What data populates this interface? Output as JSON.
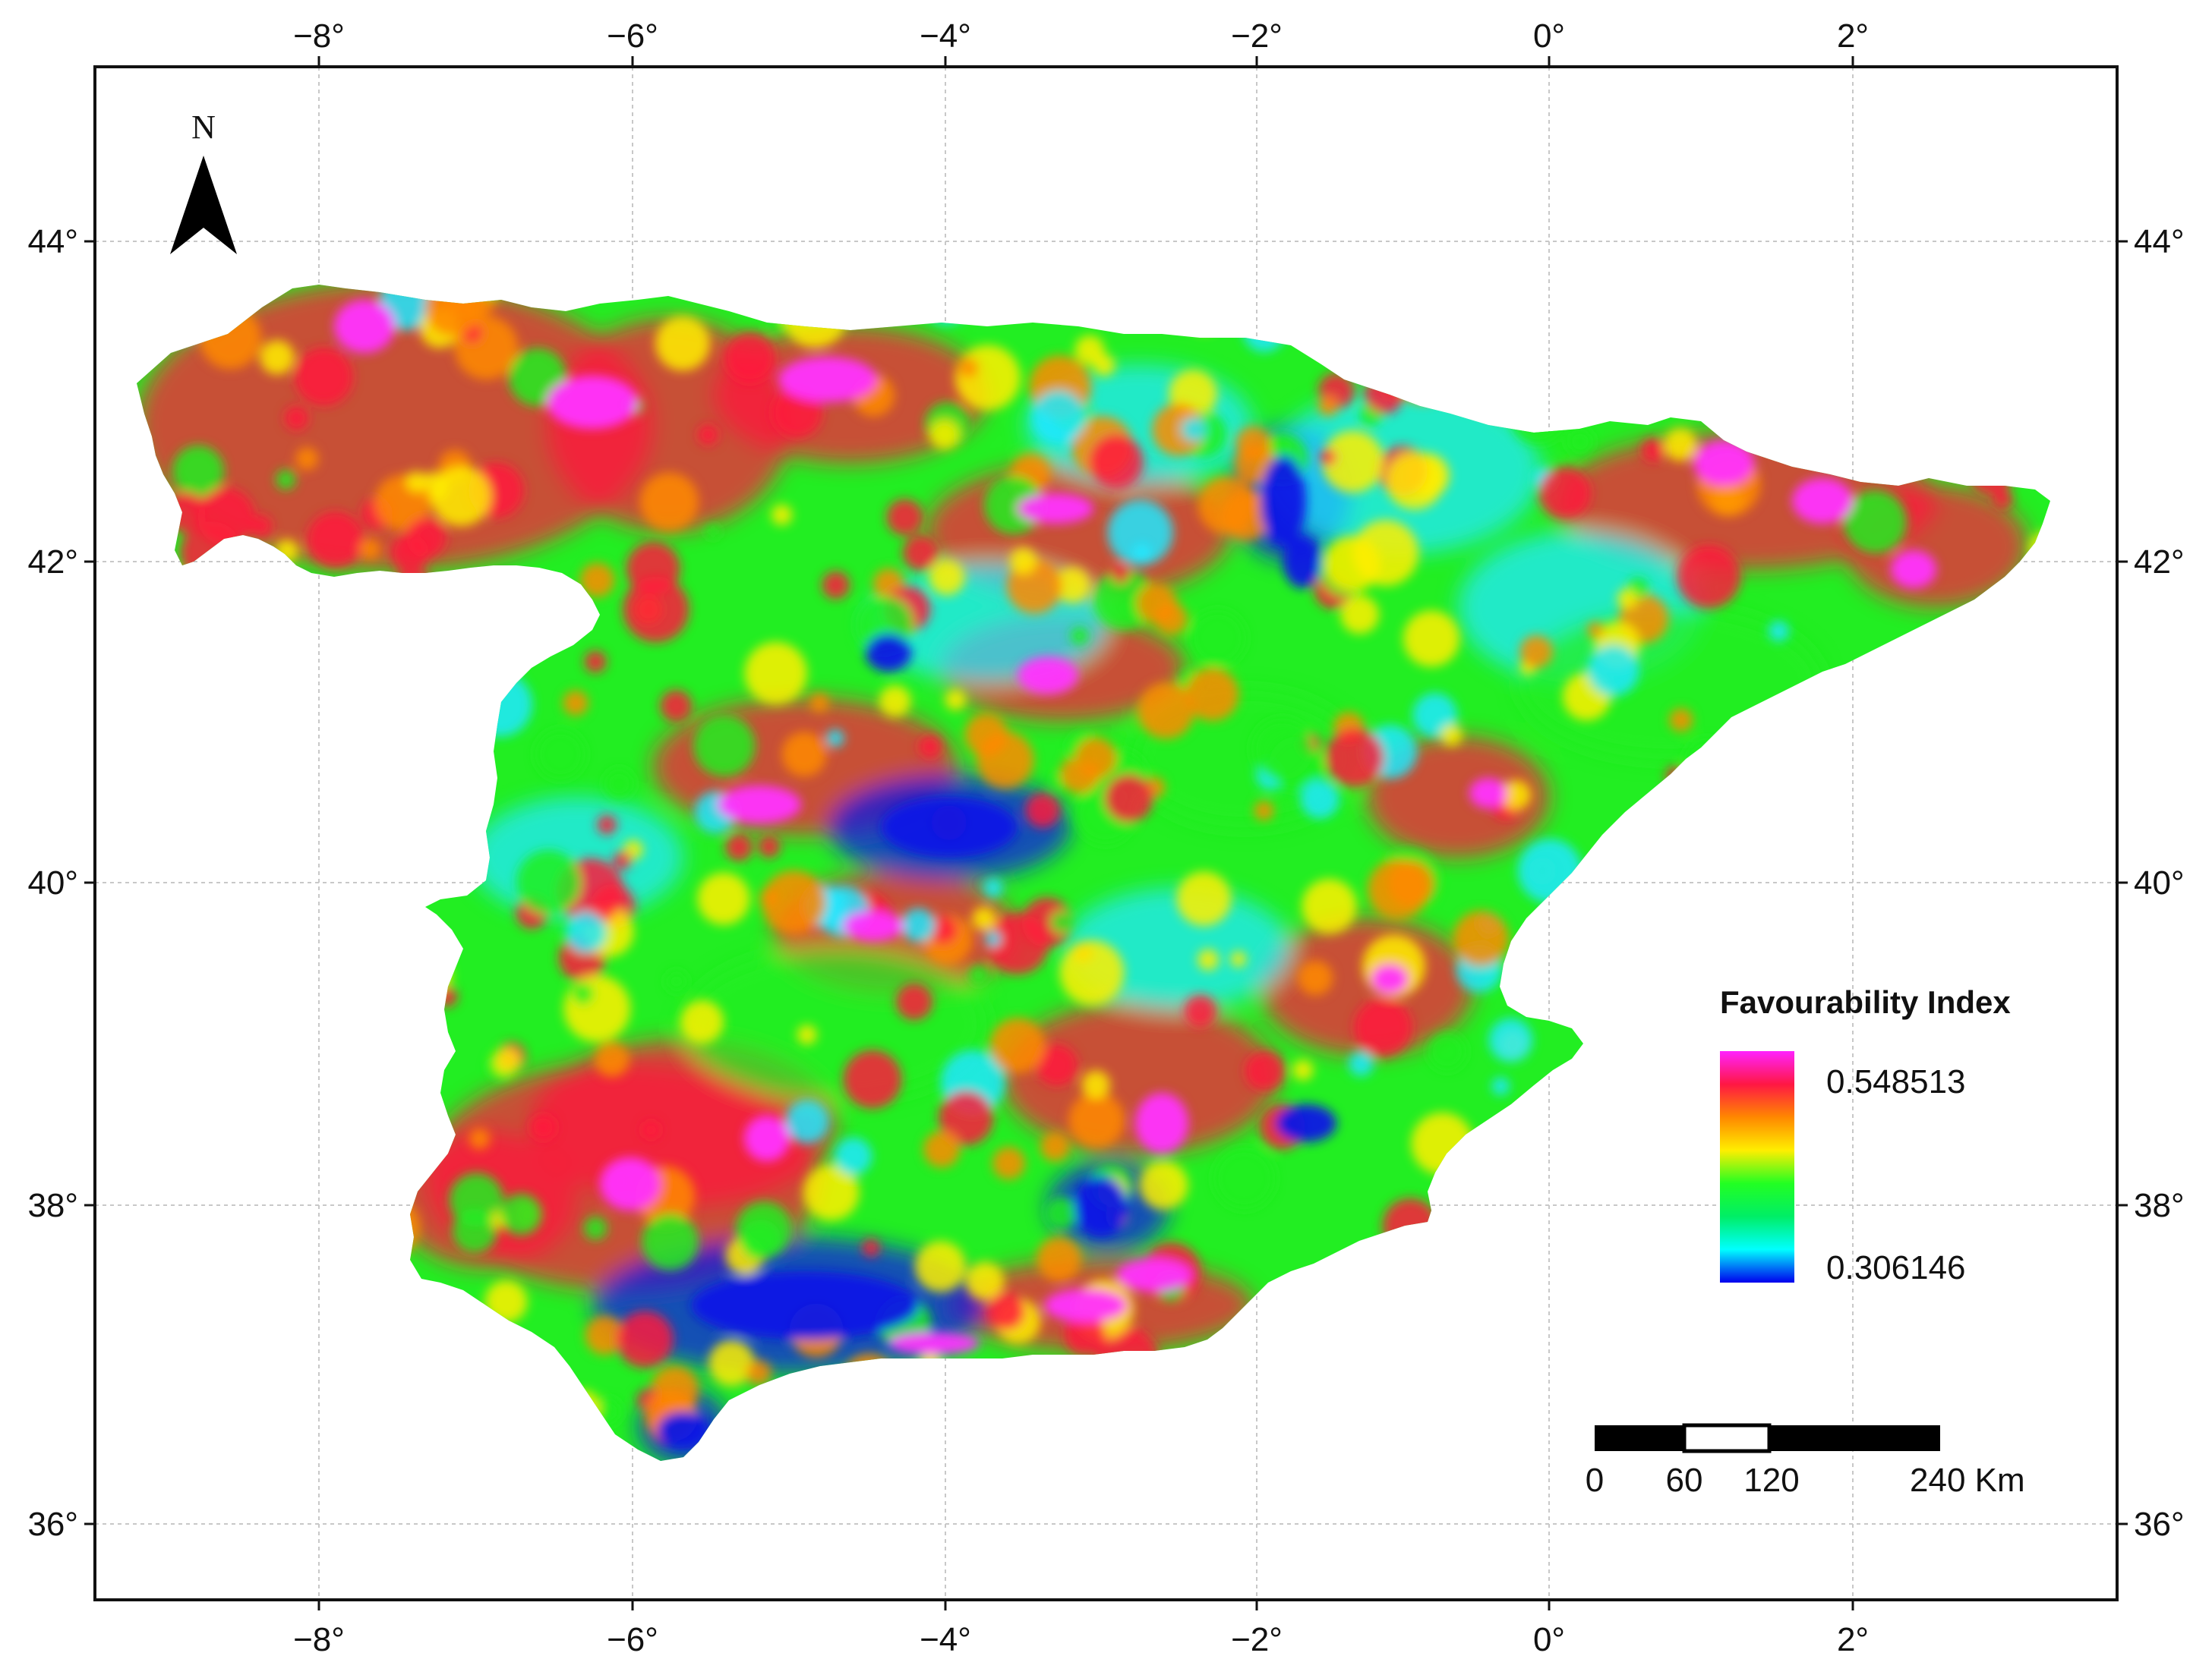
{
  "map": {
    "x_ticks": [
      "−8°",
      "−6°",
      "−4°",
      "−2°",
      "0°",
      "2°"
    ],
    "y_ticks": [
      "44°",
      "42°",
      "40°",
      "38°",
      "36°"
    ],
    "north_label": "N",
    "legend": {
      "title": "Favourability Index",
      "max_label": "0.548513",
      "min_label": "0.306146",
      "colors": [
        "#ff22ff",
        "#ff1744",
        "#ff8800",
        "#ffee00",
        "#22ff22",
        "#00ee66",
        "#00ffff",
        "#0000ee"
      ]
    },
    "scale_bar": {
      "labels": [
        "0",
        "60",
        "120",
        "240 Km"
      ]
    },
    "colors": {
      "high": "#ff33ff",
      "red": "#ff1a3c",
      "orange": "#ff8a00",
      "yellow": "#ffee00",
      "green": "#22ee22",
      "cyan": "#22e8ff",
      "blue": "#0a18e6"
    }
  }
}
